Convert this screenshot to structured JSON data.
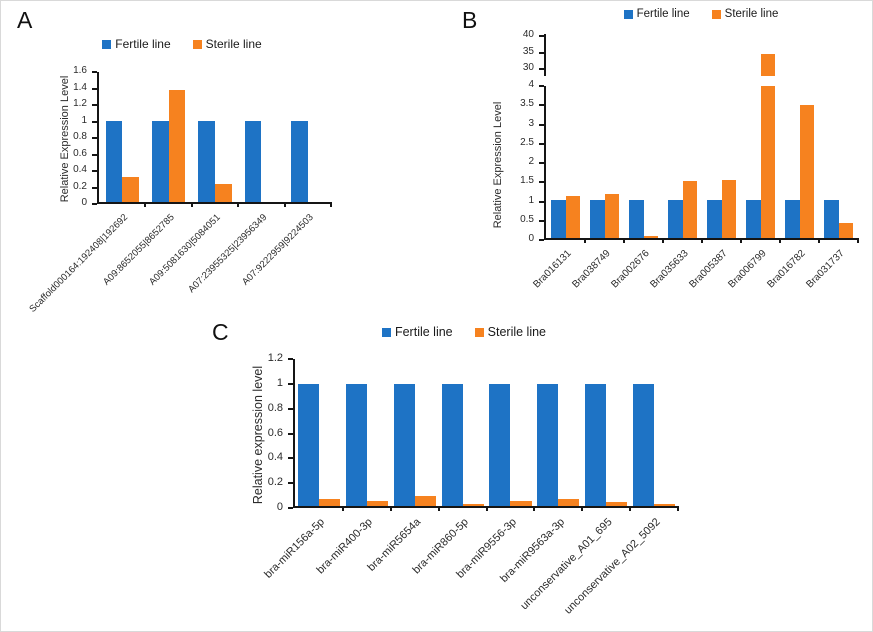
{
  "figure_title": "",
  "colors": {
    "fertile_blue": "#1E73C5",
    "sterile_orange": "#F6821F",
    "axis_black": "#151515"
  },
  "legend_labels": [
    "Fertile line",
    "Sterile line"
  ],
  "chart_data": [
    {
      "panel_label": "A",
      "type": "bar",
      "title": "",
      "xlabel": "",
      "ylabel": "Relative Expression Level",
      "legend_position": "top",
      "grid": false,
      "categories": [
        "Scaffold000164:192408|192692",
        "A09:8652055|8652785",
        "A09:5081630|5084051",
        "A07:23955325|23956349",
        "A07:9222959|9224503"
      ],
      "series": [
        {
          "name": "Fertile line",
          "color": "#1E73C5",
          "values": [
            1,
            1,
            1,
            1,
            1
          ]
        },
        {
          "name": "Sterile line",
          "color": "#F6821F",
          "values": [
            0.31,
            1.38,
            0.22,
            0,
            0
          ]
        }
      ],
      "ylim": [
        0,
        1.6
      ],
      "ytick_values": [
        0,
        0.2,
        0.4,
        0.6,
        0.8,
        1,
        1.2,
        1.4,
        1.6
      ],
      "ytick_labels": [
        "0",
        "0.2",
        "0.4",
        "0.6",
        "0.8",
        "1",
        "1.2",
        "1.4",
        "1.6"
      ]
    },
    {
      "panel_label": "B",
      "type": "bar",
      "title": "",
      "xlabel": "",
      "ylabel": "Relative Expression Level",
      "legend_position": "top",
      "grid": false,
      "axis_break": true,
      "categories": [
        "Bra016131",
        "Bra038749",
        "Bra002676",
        "Bra035633",
        "Bra005387",
        "Bra006799",
        "Bra016782",
        "Bra031737"
      ],
      "series": [
        {
          "name": "Fertile line",
          "color": "#1E73C5",
          "values": [
            1,
            1,
            1,
            1,
            1,
            1,
            1,
            1
          ]
        },
        {
          "name": "Sterile line",
          "color": "#F6821F",
          "values": [
            1.1,
            1.15,
            0.05,
            1.5,
            1.52,
            34.5,
            3.5,
            0.4
          ]
        }
      ],
      "ylim": [
        0,
        4
      ],
      "ytick_values": [
        0,
        0.5,
        1,
        1.5,
        2,
        2.5,
        3,
        3.5,
        4
      ],
      "ytick_labels": [
        "0",
        "0.5",
        "1",
        "1.5",
        "2",
        "2.5",
        "3",
        "3.5",
        "4"
      ],
      "upper_ylim": [
        30,
        40
      ],
      "upper_ytick_values": [
        30,
        35,
        40
      ],
      "upper_ytick_labels": [
        "30",
        "35",
        "40"
      ]
    },
    {
      "panel_label": "C",
      "type": "bar",
      "title": "",
      "xlabel": "",
      "ylabel": "Relative expression level",
      "legend_position": "top",
      "grid": false,
      "categories": [
        "bra-miR156a-5p",
        "bra-miR400-3p",
        "bra-miR5654a",
        "bra-miR860-5p",
        "bra-miR9556-3p",
        "bra-miR9563a-3p",
        "unconservative_A01_695",
        "unconservative_A02_5092"
      ],
      "series": [
        {
          "name": "Fertile line",
          "color": "#1E73C5",
          "values": [
            1,
            1,
            1,
            1,
            1,
            1,
            1,
            1
          ]
        },
        {
          "name": "Sterile line",
          "color": "#F6821F",
          "values": [
            0.06,
            0.04,
            0.08,
            0.02,
            0.04,
            0.06,
            0.03,
            0.02
          ]
        }
      ],
      "ylim": [
        0,
        1.2
      ],
      "ytick_values": [
        0,
        0.2,
        0.4,
        0.6,
        0.8,
        1,
        1.2
      ],
      "ytick_labels": [
        "0",
        "0.2",
        "0.4",
        "0.6",
        "0.8",
        "1",
        "1.2"
      ]
    }
  ]
}
